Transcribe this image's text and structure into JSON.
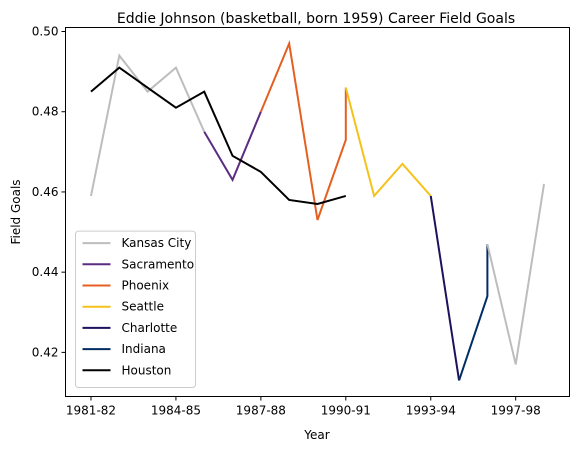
{
  "chart_data": {
    "type": "line",
    "title": "Eddie Johnson (basketball, born 1959) Career Field Goals",
    "xlabel": "Year",
    "ylabel": "Field Goals",
    "x_tick_labels": [
      "1981-82",
      "1984-85",
      "1987-88",
      "1990-91",
      "1993-94",
      "1997-98"
    ],
    "x_tick_positions": [
      0,
      3,
      6,
      9,
      12,
      15
    ],
    "xlim": [
      -0.9,
      16.9
    ],
    "ylim": [
      0.409,
      0.501
    ],
    "y_ticks": [
      0.42,
      0.44,
      0.46,
      0.48,
      0.5
    ],
    "y_tick_labels": [
      "0.42",
      "0.44",
      "0.46",
      "0.48",
      "0.50"
    ],
    "grid": false,
    "legend_position": "lower-left",
    "series": [
      {
        "name": "Kansas City",
        "color": "#bdbdbd",
        "x": [
          0,
          1,
          2,
          3,
          4
        ],
        "y": [
          0.459,
          0.494,
          0.485,
          0.491,
          0.475
        ]
      },
      {
        "name": "Sacramento",
        "color": "#5a2d81",
        "x": [
          4,
          5,
          6
        ],
        "y": [
          0.475,
          0.463,
          0.48
        ]
      },
      {
        "name": "Phoenix",
        "color": "#e56020",
        "x": [
          6,
          7,
          8,
          9,
          9
        ],
        "y": [
          0.48,
          0.497,
          0.453,
          0.473,
          0.486
        ]
      },
      {
        "name": "Seattle",
        "color": "#f5c21b",
        "x": [
          9,
          10,
          11,
          12
        ],
        "y": [
          0.486,
          0.459,
          0.467,
          0.459
        ]
      },
      {
        "name": "Charlotte",
        "color": "#1d1160",
        "x": [
          12,
          13
        ],
        "y": [
          0.459,
          0.413
        ]
      },
      {
        "name": "Indiana",
        "color": "#002d62",
        "x": [
          13,
          14,
          14
        ],
        "y": [
          0.413,
          0.434,
          0.447
        ]
      },
      {
        "name": "Kansas City",
        "color": "#bdbdbd",
        "x": [
          14,
          15,
          16
        ],
        "y": [
          0.447,
          0.417,
          0.462
        ]
      },
      {
        "name": "Houston",
        "color": "#000000",
        "x": [
          0,
          1,
          2,
          3,
          4,
          5,
          6,
          7,
          8,
          9
        ],
        "y": [
          0.485,
          0.491,
          0.486,
          0.481,
          0.485,
          0.469,
          0.465,
          0.458,
          0.457,
          0.459
        ]
      }
    ],
    "legend": [
      {
        "name": "Kansas City",
        "color": "#bdbdbd"
      },
      {
        "name": "Sacramento",
        "color": "#5a2d81"
      },
      {
        "name": "Phoenix",
        "color": "#e56020"
      },
      {
        "name": "Seattle",
        "color": "#f5c21b"
      },
      {
        "name": "Charlotte",
        "color": "#1d1160"
      },
      {
        "name": "Indiana",
        "color": "#002d62"
      },
      {
        "name": "Houston",
        "color": "#000000"
      }
    ]
  }
}
